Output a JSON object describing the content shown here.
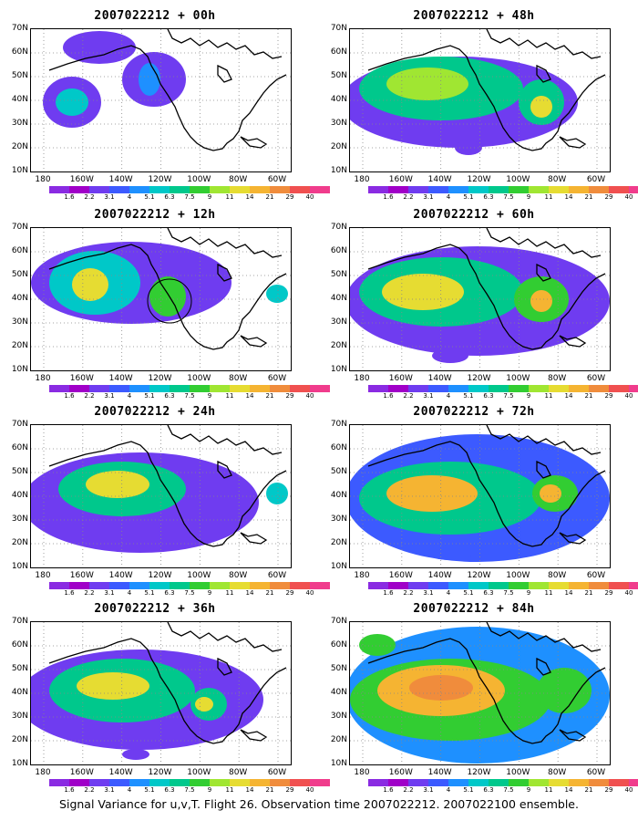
{
  "panels": [
    {
      "title": "2007022212 + 00h"
    },
    {
      "title": "2007022212 + 48h"
    },
    {
      "title": "2007022212 + 12h"
    },
    {
      "title": "2007022212 + 60h"
    },
    {
      "title": "2007022212 + 24h"
    },
    {
      "title": "2007022212 + 72h"
    },
    {
      "title": "2007022212 + 36h"
    },
    {
      "title": "2007022212 + 84h"
    }
  ],
  "lat_labels": [
    "70N",
    "60N",
    "50N",
    "40N",
    "30N",
    "20N",
    "10N"
  ],
  "lon_labels": [
    "180",
    "160W",
    "140W",
    "120W",
    "100W",
    "80W",
    "60W"
  ],
  "colorbar": {
    "labels": [
      "1.6",
      "2.2",
      "3.1",
      "4",
      "5.1",
      "6.3",
      "7.5",
      "9",
      "11",
      "14",
      "21",
      "29",
      "40"
    ],
    "colors": [
      "#8a2be2",
      "#a000c8",
      "#6f3cf0",
      "#3c5aff",
      "#1e90ff",
      "#00c8c8",
      "#00c88c",
      "#32cd32",
      "#a0e632",
      "#e6dc32",
      "#f5b432",
      "#f08c3c",
      "#f05050",
      "#f03c8c"
    ]
  },
  "footer": "Signal Variance for u,v,T. Flight 26. Observation time 2007022212. 2007022100 ensemble."
}
